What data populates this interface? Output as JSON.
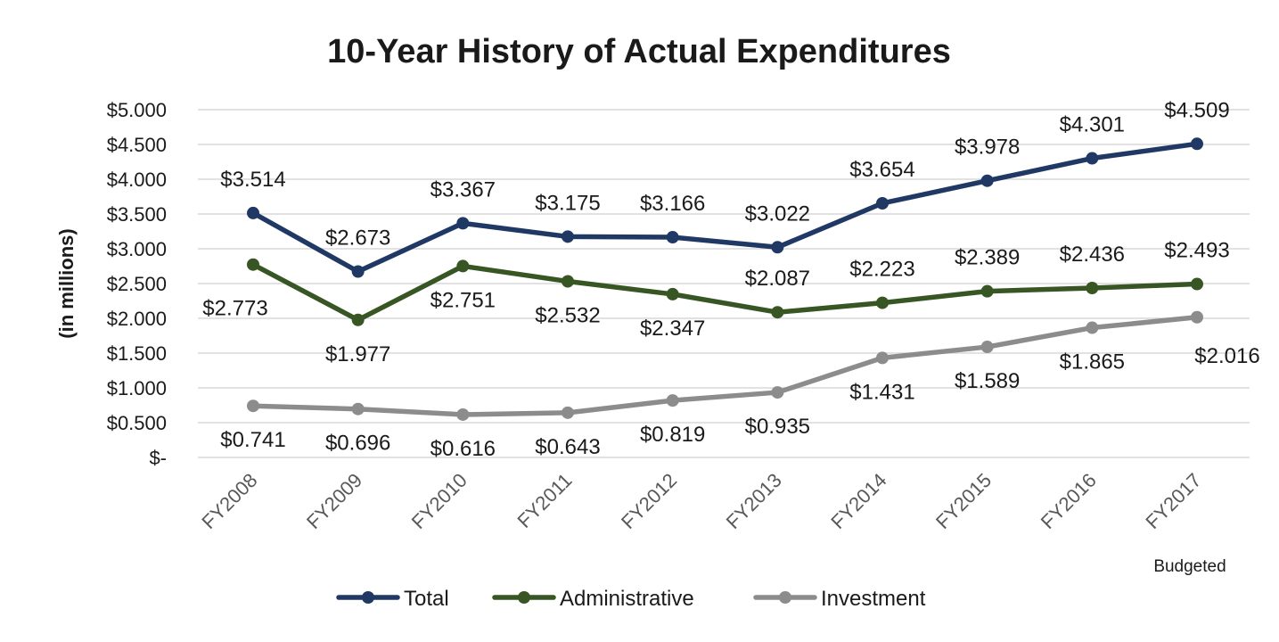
{
  "chart_data": {
    "type": "line",
    "title": "10-Year History of Actual Expenditures",
    "ylabel": "(in millions)",
    "xlabel": "",
    "categories": [
      "FY2008",
      "FY2009",
      "FY2010",
      "FY2011",
      "FY2012",
      "FY2013",
      "FY2014",
      "FY2015",
      "FY2016",
      "FY2017"
    ],
    "category_notes": [
      "",
      "",
      "",
      "",
      "",
      "",
      "",
      "",
      "",
      "Budgeted"
    ],
    "ylim": [
      0,
      5
    ],
    "yticks": [
      {
        "value": 0,
        "label": "$-"
      },
      {
        "value": 0.5,
        "label": "$0.500"
      },
      {
        "value": 1,
        "label": "$1.000"
      },
      {
        "value": 1.5,
        "label": "$1.500"
      },
      {
        "value": 2,
        "label": "$2.000"
      },
      {
        "value": 2.5,
        "label": "$2.500"
      },
      {
        "value": 3,
        "label": "$3.000"
      },
      {
        "value": 3.5,
        "label": "$3.500"
      },
      {
        "value": 4,
        "label": "$4.000"
      },
      {
        "value": 4.5,
        "label": "$4.500"
      },
      {
        "value": 5,
        "label": "$5.000"
      }
    ],
    "grid": true,
    "legend_position": "bottom",
    "series": [
      {
        "name": "Total",
        "color": "#203864",
        "values": [
          3.514,
          2.673,
          3.367,
          3.175,
          3.166,
          3.022,
          3.654,
          3.978,
          4.301,
          4.509
        ],
        "labels": [
          "$3.514",
          "$2.673",
          "$3.367",
          "$3.175",
          "$3.166",
          "$3.022",
          "$3.654",
          "$3.978",
          "$4.301",
          "$4.509"
        ],
        "label_side": [
          "above",
          "above",
          "above",
          "above",
          "above",
          "above",
          "above",
          "above",
          "above",
          "above"
        ]
      },
      {
        "name": "Administrative",
        "color": "#375623",
        "values": [
          2.773,
          1.977,
          2.751,
          2.532,
          2.347,
          2.087,
          2.223,
          2.389,
          2.436,
          2.493
        ],
        "labels": [
          "$2.773",
          "$1.977",
          "$2.751",
          "$2.532",
          "$2.347",
          "$2.087",
          "$2.223",
          "$2.389",
          "$2.436",
          "$2.493"
        ],
        "label_side": [
          "below-left",
          "below",
          "below",
          "below",
          "below",
          "above",
          "above",
          "above",
          "above",
          "above"
        ]
      },
      {
        "name": "Investment",
        "color": "#8c8c8c",
        "values": [
          0.741,
          0.696,
          0.616,
          0.643,
          0.819,
          0.935,
          1.431,
          1.589,
          1.865,
          2.016
        ],
        "labels": [
          "$0.741",
          "$0.696",
          "$0.616",
          "$0.643",
          "$0.819",
          "$0.935",
          "$1.431",
          "$1.589",
          "$1.865",
          "$2.016"
        ],
        "label_side": [
          "below",
          "below",
          "below",
          "below",
          "below",
          "below",
          "below",
          "below",
          "below",
          "below-right"
        ]
      }
    ]
  }
}
